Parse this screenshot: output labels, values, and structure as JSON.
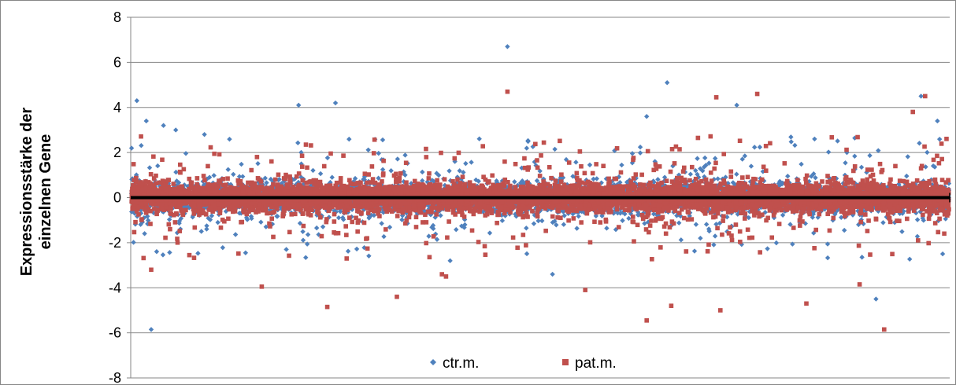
{
  "chart_data": {
    "type": "scatter",
    "title": "",
    "ylabel": "Expressionsstärke der\neinzelnen Gene",
    "xlabel": "",
    "ylim": [
      -8,
      8
    ],
    "yticks": [
      "8",
      "6",
      "4",
      "2",
      "0",
      "-2",
      "-4",
      "-6",
      "-8"
    ],
    "x_range": [
      0,
      20000
    ],
    "grid": "horizontal",
    "legend_position": "bottom-center",
    "zero_line_color": "#000000",
    "series": [
      {
        "name": "ctr.m.",
        "color": "#4F81BD",
        "marker": "diamond",
        "points_outliers": [
          [
            150,
            4.3
          ],
          [
            380,
            3.4
          ],
          [
            500,
            -5.85
          ],
          [
            800,
            3.2
          ],
          [
            1100,
            3.0
          ],
          [
            5000,
            4.2
          ],
          [
            9200,
            6.7
          ],
          [
            13100,
            5.1
          ],
          [
            14800,
            4.1
          ],
          [
            19300,
            4.5
          ],
          [
            19700,
            3.4
          ],
          [
            18200,
            -4.5
          ],
          [
            1800,
            2.8
          ],
          [
            3800,
            -2.3
          ],
          [
            12600,
            3.6
          ],
          [
            10300,
            -3.4
          ],
          [
            7800,
            -2.8
          ],
          [
            16700,
            2.6
          ],
          [
            4100,
            4.1
          ]
        ],
        "spread_core": 0.3,
        "spread_extreme": 2.5
      },
      {
        "name": "pat.m.",
        "color": "#C0504D",
        "marker": "square",
        "points_outliers": [
          [
            500,
            -3.2
          ],
          [
            7600,
            -3.4
          ],
          [
            9200,
            4.7
          ],
          [
            14300,
            4.45
          ],
          [
            15300,
            4.6
          ],
          [
            19100,
            3.8
          ],
          [
            19400,
            4.5
          ],
          [
            6500,
            -4.4
          ],
          [
            11100,
            -4.1
          ],
          [
            12600,
            -5.45
          ],
          [
            13200,
            -4.8
          ],
          [
            14400,
            -5.0
          ],
          [
            16500,
            -4.7
          ],
          [
            18400,
            -5.85
          ],
          [
            4800,
            -4.85
          ],
          [
            3200,
            -3.95
          ],
          [
            7700,
            -3.5
          ],
          [
            17800,
            -3.85
          ]
        ],
        "spread_core": 0.3,
        "spread_extreme": 2.5
      }
    ]
  }
}
